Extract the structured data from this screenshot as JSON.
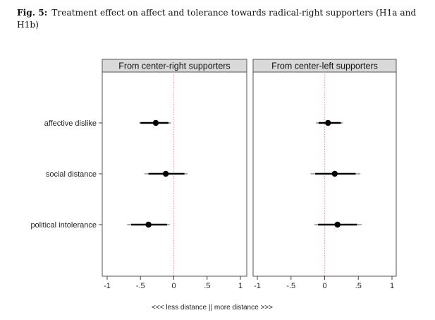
{
  "figure": {
    "label": "Fig. 5:",
    "caption": "Treatment effect on affect and tolerance towards radical-right supporters (H1a and H1b)"
  },
  "chart_data": {
    "type": "scatter",
    "subtype": "coefficient-plot",
    "xlabel": "<<< less distance || more distance >>>",
    "xlim": [
      -1,
      1
    ],
    "xticks": [
      -1,
      -0.5,
      0,
      0.5,
      1
    ],
    "xtick_labels": [
      "-1",
      "-.5",
      "0",
      ".5",
      "1"
    ],
    "reference_line": 0,
    "categories": [
      "affective dislike",
      "social distance",
      "political intolerance"
    ],
    "panels": [
      {
        "title": "From center-right supporters",
        "points": [
          {
            "category": "affective dislike",
            "estimate": -0.27,
            "ci90": [
              -0.5,
              -0.08
            ],
            "ci95": [
              -0.52,
              -0.04
            ]
          },
          {
            "category": "social distance",
            "estimate": -0.12,
            "ci90": [
              -0.38,
              0.16
            ],
            "ci95": [
              -0.44,
              0.21
            ]
          },
          {
            "category": "political intolerance",
            "estimate": -0.38,
            "ci90": [
              -0.64,
              -0.1
            ],
            "ci95": [
              -0.7,
              -0.06
            ]
          }
        ]
      },
      {
        "title": "From center-left supporters",
        "points": [
          {
            "category": "affective dislike",
            "estimate": 0.05,
            "ci90": [
              -0.09,
              0.24
            ],
            "ci95": [
              -0.13,
              0.27
            ]
          },
          {
            "category": "social distance",
            "estimate": 0.15,
            "ci90": [
              -0.14,
              0.46
            ],
            "ci95": [
              -0.21,
              0.53
            ]
          },
          {
            "category": "political intolerance",
            "estimate": 0.19,
            "ci90": [
              -0.1,
              0.48
            ],
            "ci95": [
              -0.15,
              0.55
            ]
          }
        ]
      }
    ],
    "colors": {
      "point": "#000000",
      "ci": "#000000",
      "ci_outer": "#777777",
      "reference": "#e8a0a0",
      "strip_bg": "#d9d9d9",
      "panel_border": "#555555"
    },
    "grid": false,
    "legend": "none"
  }
}
